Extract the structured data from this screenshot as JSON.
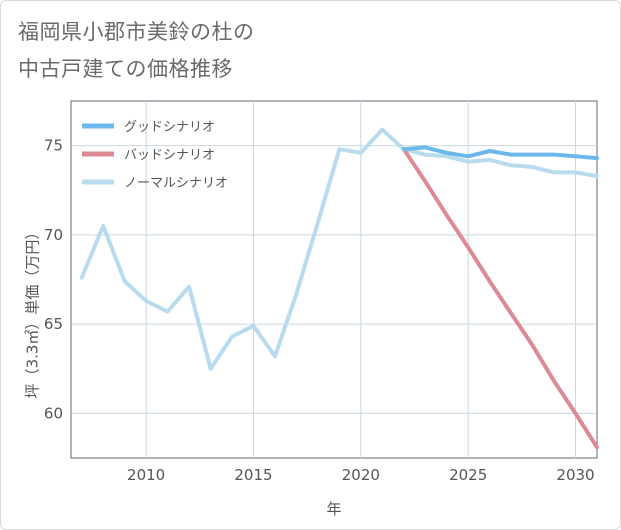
{
  "title": {
    "line1": "福岡県小郡市美鈴の杜の",
    "line2": "中古戸建ての価格推移"
  },
  "chart_data": {
    "type": "line",
    "title": "福岡県小郡市美鈴の杜の中古戸建ての価格推移",
    "xlabel": "年",
    "ylabel": "坪（3.3㎡）単価（万円）",
    "xlim": [
      2006.5,
      2031
    ],
    "ylim": [
      57.5,
      77.5
    ],
    "xticks": [
      2010,
      2015,
      2020,
      2025,
      2030
    ],
    "yticks": [
      60,
      65,
      70,
      75
    ],
    "grid": true,
    "legend_position": "top-left",
    "series": [
      {
        "name": "グッドシナリオ",
        "color": "#6cb8ec",
        "x": [
          2022,
          2023,
          2024,
          2025,
          2026,
          2027,
          2028,
          2029,
          2030,
          2031
        ],
        "y": [
          74.8,
          74.9,
          74.6,
          74.4,
          74.7,
          74.5,
          74.5,
          74.5,
          74.4,
          74.3
        ]
      },
      {
        "name": "バッドシナリオ",
        "color": "#dc8a94",
        "x": [
          2022,
          2023,
          2024,
          2025,
          2026,
          2027,
          2028,
          2029,
          2030,
          2031
        ],
        "y": [
          74.8,
          73.0,
          71.1,
          69.3,
          67.4,
          65.6,
          63.8,
          61.8,
          60.0,
          58.1
        ]
      },
      {
        "name": "ノーマルシナリオ",
        "color": "#b8dced",
        "x": [
          2007,
          2008,
          2009,
          2010,
          2011,
          2012,
          2013,
          2014,
          2015,
          2016,
          2017,
          2018,
          2019,
          2020,
          2021,
          2022,
          2023,
          2024,
          2025,
          2026,
          2027,
          2028,
          2029,
          2030,
          2031
        ],
        "y": [
          67.6,
          70.5,
          67.4,
          66.3,
          65.7,
          67.1,
          62.5,
          64.3,
          64.9,
          63.2,
          66.7,
          70.7,
          74.8,
          74.6,
          75.9,
          74.8,
          74.5,
          74.4,
          74.1,
          74.2,
          73.9,
          73.8,
          73.5,
          73.5,
          73.3
        ]
      }
    ]
  }
}
